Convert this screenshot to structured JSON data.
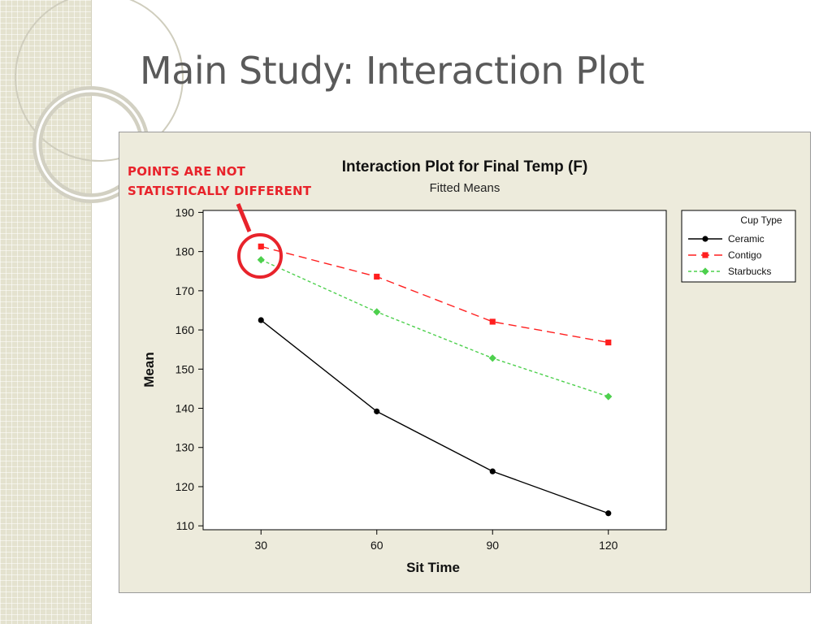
{
  "slide": {
    "title": "Main Study: Interaction Plot"
  },
  "annotation": {
    "line1": "POINTS ARE NOT",
    "line2": "STATISTICALLY DIFFERENT"
  },
  "chart_data": {
    "type": "line",
    "title": "Interaction Plot for Final Temp (F)",
    "subtitle": "Fitted Means",
    "xlabel": "Sit Time",
    "ylabel": "Mean",
    "x": [
      30,
      60,
      90,
      120
    ],
    "ylim": [
      109,
      190.5
    ],
    "yticks": [
      110,
      120,
      130,
      140,
      150,
      160,
      170,
      180,
      190
    ],
    "grid": false,
    "legend": {
      "title": "Cup Type",
      "placement": "right"
    },
    "series": [
      {
        "name": "Ceramic",
        "values": [
          162.5,
          139.2,
          123.9,
          113.2
        ],
        "color": "#000000",
        "marker": "circle",
        "dash": "solid"
      },
      {
        "name": "Contigo",
        "values": [
          181.3,
          173.6,
          162.1,
          156.8
        ],
        "color": "#ff1f1f",
        "marker": "square",
        "dash": "dashed"
      },
      {
        "name": "Starbucks",
        "values": [
          177.9,
          164.6,
          152.8,
          143.0
        ],
        "color": "#4dd04d",
        "marker": "diamond",
        "dash": "dotted"
      }
    ]
  },
  "colors": {
    "annotation": "#e8232b",
    "frame_bg": "#edebdc",
    "strip": "#e4e2cf"
  }
}
